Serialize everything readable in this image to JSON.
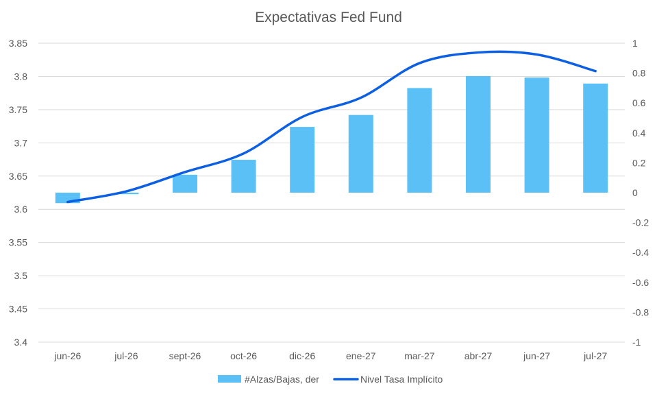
{
  "chart_data": {
    "type": "bar",
    "title": "Expectativas Fed Fund",
    "categories": [
      "jun-26",
      "jul-26",
      "sept-26",
      "oct-26",
      "dic-26",
      "ene-27",
      "mar-27",
      "abr-27",
      "jun-27",
      "jul-27"
    ],
    "y_left": {
      "min": 3.4,
      "max": 3.85,
      "step": 0.05,
      "ticks": [
        "3.4",
        "3.45",
        "3.5",
        "3.55",
        "3.6",
        "3.65",
        "3.7",
        "3.75",
        "3.8",
        "3.85"
      ]
    },
    "y_right": {
      "min": -1,
      "max": 1,
      "step": 0.2,
      "ticks": [
        "-1",
        "-0.8",
        "-0.6",
        "-0.4",
        "-0.2",
        "0",
        "0.2",
        "0.4",
        "0.6",
        "0.8",
        "1"
      ]
    },
    "grid": true,
    "legend_position": "bottom",
    "series": [
      {
        "name": "#Alzas/Bajas, der",
        "type": "bar",
        "axis": "right",
        "color": "#5BC0F5",
        "values": [
          -0.07,
          -0.01,
          0.12,
          0.22,
          0.44,
          0.52,
          0.7,
          0.78,
          0.77,
          0.73
        ]
      },
      {
        "name": "Nivel Tasa Implícito",
        "type": "line",
        "axis": "left",
        "color": "#0B5FE0",
        "values": [
          3.611,
          3.627,
          3.656,
          3.684,
          3.739,
          3.768,
          3.82,
          3.836,
          3.833,
          3.808
        ]
      }
    ]
  }
}
